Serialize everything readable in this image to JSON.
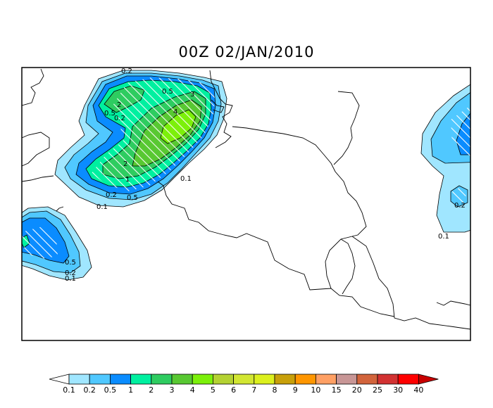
{
  "title": "00Z 02/JAN/2010",
  "colorbar": {
    "levels": [
      "0.1",
      "0.2",
      "0.5",
      "1",
      "2",
      "3",
      "4",
      "5",
      "6",
      "7",
      "8",
      "9",
      "10",
      "15",
      "20",
      "25",
      "30",
      "40"
    ],
    "colors": [
      "#a0e6ff",
      "#50c8ff",
      "#0a8cff",
      "#00f0a0",
      "#2ecc60",
      "#58c832",
      "#7cf00a",
      "#b4d232",
      "#d2e632",
      "#dcf01e",
      "#c8a00a",
      "#ff9600",
      "#ffa064",
      "#c89696",
      "#d2643c",
      "#d23232",
      "#ff0000",
      "#c80000"
    ]
  },
  "contour_labels": {
    "fill_0_1": "0.1",
    "fill_0_2": "0.2",
    "fill_0_5": "0.5",
    "fill_1": "1",
    "fill_2": "2",
    "fill_3": "3",
    "fill_4": "4"
  }
}
